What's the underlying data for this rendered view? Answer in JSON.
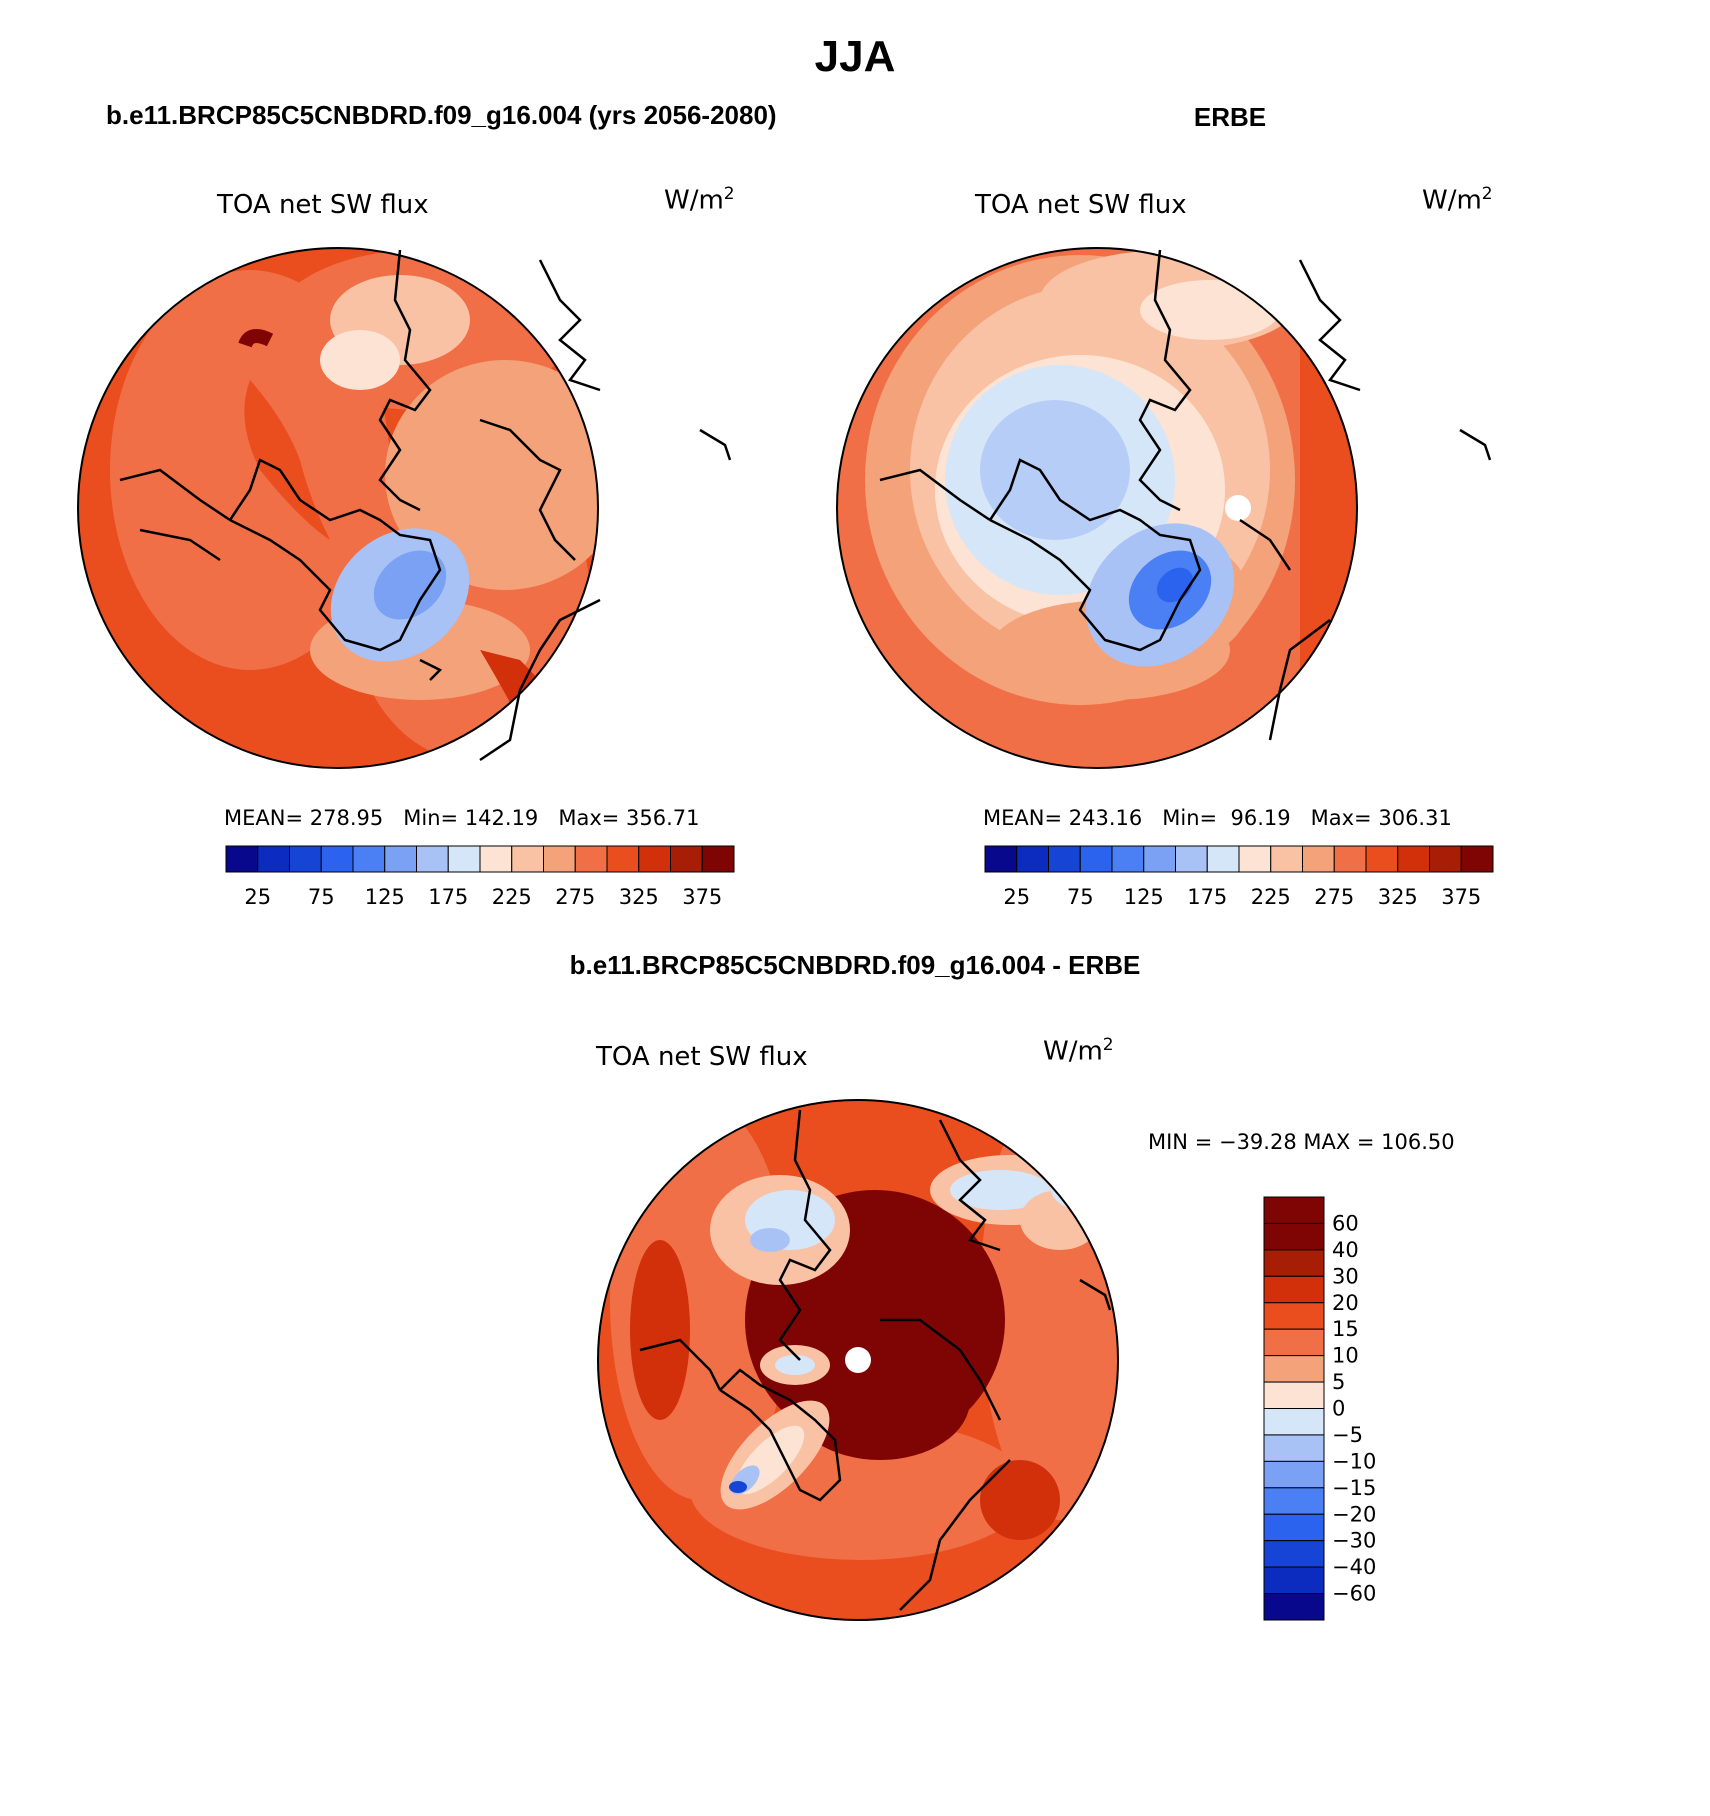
{
  "page_title": "JJA",
  "colors": {
    "scale15": [
      "#08088c",
      "#0c2bbf",
      "#1645d6",
      "#2b62ee",
      "#4a80f4",
      "#7ba1f4",
      "#a8c2f6",
      "#d6e6f9",
      "#fde3d3",
      "#f9c2a5",
      "#f4a27a",
      "#f06f46",
      "#ea4d1e",
      "#d22f0b",
      "#a81d06",
      "#7f0505"
    ],
    "diff": [
      "#7f0505",
      "#a81d06",
      "#d22f0b",
      "#ea4d1e",
      "#f06f46",
      "#f4a27a",
      "#fde3d3",
      "#d6e6f9",
      "#a8c2f6",
      "#7ba1f4",
      "#4a80f4",
      "#2b62ee",
      "#1645d6",
      "#0c2bbf",
      "#08088c"
    ]
  },
  "panels": [
    {
      "id": "model",
      "header": "b.e11.BRCP85C5CNBDRD.f09_g16.004 (yrs 2056-2080)",
      "field": "TOA net SW flux",
      "units": "W/m",
      "units_sup": "2",
      "stats": {
        "mean_label": "MEAN=",
        "mean": "278.95",
        "min_label": "Min=",
        "min": "142.19",
        "max_label": "Max=",
        "max": "356.71"
      },
      "colorbar_labels": [
        "25",
        "75",
        "125",
        "175",
        "225",
        "275",
        "325",
        "375"
      ]
    },
    {
      "id": "obs",
      "header": "ERBE",
      "field": "TOA net SW flux",
      "units": "W/m",
      "units_sup": "2",
      "stats": {
        "mean_label": "MEAN=",
        "mean": "243.16",
        "min_label": "Min=",
        "min": "96.19",
        "max_label": "Max=",
        "max": "306.31"
      },
      "colorbar_labels": [
        "25",
        "75",
        "125",
        "175",
        "225",
        "275",
        "325",
        "375"
      ]
    },
    {
      "id": "diff",
      "header": "b.e11.BRCP85C5CNBDRD.f09_g16.004 - ERBE",
      "field": "TOA net SW flux",
      "units": "W/m",
      "units_sup": "2",
      "minmax": "MIN = −39.28 MAX = 106.50",
      "colorbar_labels": [
        "60",
        "40",
        "30",
        "20",
        "15",
        "10",
        "5",
        "0",
        "−5",
        "−10",
        "−15",
        "−20",
        "−30",
        "−40",
        "−60"
      ]
    }
  ]
}
